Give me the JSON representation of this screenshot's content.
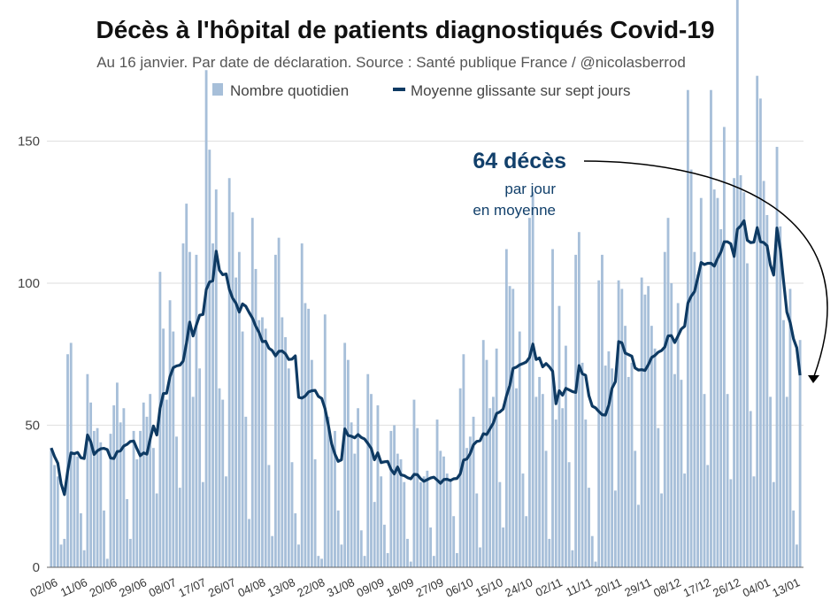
{
  "chart_data": {
    "type": "bar",
    "title": "Décès à l'hôpital de patients diagnostiqués Covid-19",
    "subtitle": "Au 16 janvier. Par date de déclaration. Source : Santé publique France / @nicolasberrod",
    "xlabel": "",
    "ylabel": "",
    "ylim": [
      0,
      175
    ],
    "yticks": [
      0,
      50,
      100,
      150
    ],
    "grid": true,
    "legend_position": "top",
    "legend": {
      "bars": "Nombre quotidien",
      "line": "Moyenne glissante sur sept jours"
    },
    "x_start": "02/06",
    "xtick_every_days": 9,
    "xtick_labels": [
      "02/06",
      "11/06",
      "20/06",
      "29/06",
      "08/07",
      "17/07",
      "26/07",
      "04/08",
      "13/08",
      "22/08",
      "31/08",
      "09/09",
      "18/09",
      "27/09",
      "06/10",
      "15/10",
      "24/10",
      "02/11",
      "11/11",
      "20/11",
      "29/11",
      "08/12",
      "17/12",
      "26/12",
      "04/01",
      "13/01"
    ],
    "series": [
      {
        "name": "Nombre quotidien",
        "type": "bar",
        "color": "#a7bfd9",
        "values": [
          42,
          36,
          32,
          8,
          10,
          75,
          79,
          40,
          39,
          19,
          6,
          68,
          58,
          48,
          49,
          44,
          20,
          3,
          47,
          57,
          65,
          51,
          56,
          24,
          10,
          48,
          38,
          48,
          58,
          53,
          61,
          42,
          26,
          104,
          84,
          59,
          94,
          83,
          46,
          28,
          114,
          128,
          111,
          60,
          110,
          70,
          30,
          175,
          147,
          114,
          133,
          63,
          59,
          32,
          137,
          125,
          102,
          111,
          83,
          53,
          17,
          123,
          105,
          87,
          88,
          84,
          36,
          11,
          110,
          116,
          88,
          81,
          70,
          37,
          19,
          8,
          114,
          93,
          91,
          73,
          38,
          4,
          3,
          89,
          53,
          44,
          48,
          20,
          8,
          79,
          73,
          51,
          40,
          56,
          13,
          4,
          68,
          61,
          23,
          57,
          32,
          15,
          5,
          48,
          50,
          40,
          38,
          30,
          10,
          2,
          59,
          49,
          30,
          32,
          34,
          14,
          4,
          52,
          41,
          39,
          33,
          31,
          18,
          5,
          63,
          75,
          42,
          46,
          53,
          26,
          7,
          80,
          73,
          56,
          60,
          77,
          30,
          14,
          112,
          99,
          98,
          63,
          83,
          33,
          18,
          123,
          132,
          60,
          67,
          61,
          41,
          10,
          112,
          52,
          92,
          56,
          78,
          37,
          6,
          110,
          118,
          72,
          52,
          28,
          11,
          2,
          101,
          110,
          71,
          76,
          70,
          27,
          101,
          98,
          85,
          67,
          72,
          41,
          22,
          102,
          96,
          99,
          85,
          77,
          49,
          26,
          111,
          123,
          100,
          68,
          93,
          66,
          33,
          168,
          140,
          111,
          103,
          130,
          61,
          36,
          168,
          133,
          130,
          119,
          155,
          61,
          31,
          137,
          200,
          138,
          132,
          107,
          55,
          32,
          173,
          165,
          136,
          124,
          60,
          30,
          148,
          120,
          87,
          60,
          98,
          20,
          8,
          80
        ]
      },
      {
        "name": "Moyenne glissante sur sept jours",
        "type": "line",
        "color": "#0e3a63",
        "window_days": 7
      }
    ],
    "annotation": {
      "value": "64 décès",
      "line1": "par jour",
      "line2": "en moyenne"
    }
  }
}
